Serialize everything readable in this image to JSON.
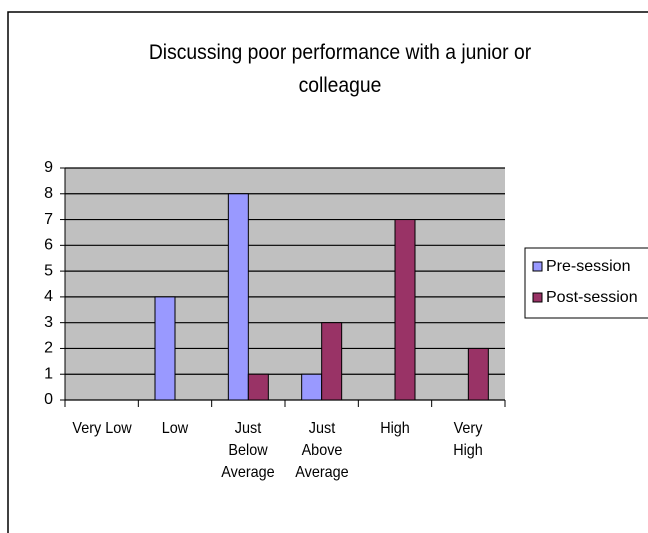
{
  "chart_data": {
    "type": "bar",
    "title": "Discussing poor performance with a junior or colleague",
    "categories": [
      "Very Low",
      "Low",
      "Just Below Average",
      "Just Above Average",
      "High",
      "Very High"
    ],
    "series": [
      {
        "name": "Pre-session",
        "color": "#9999ff",
        "values": [
          0,
          4,
          8,
          1,
          0,
          0
        ]
      },
      {
        "name": "Post-session",
        "color": "#993366",
        "values": [
          0,
          0,
          1,
          3,
          7,
          2
        ]
      }
    ],
    "ylim": [
      0,
      9
    ],
    "yticks": [
      0,
      1,
      2,
      3,
      4,
      5,
      6,
      7,
      8,
      9
    ],
    "grid": true,
    "legend": "right",
    "plot_background": "#c0c0c0"
  }
}
